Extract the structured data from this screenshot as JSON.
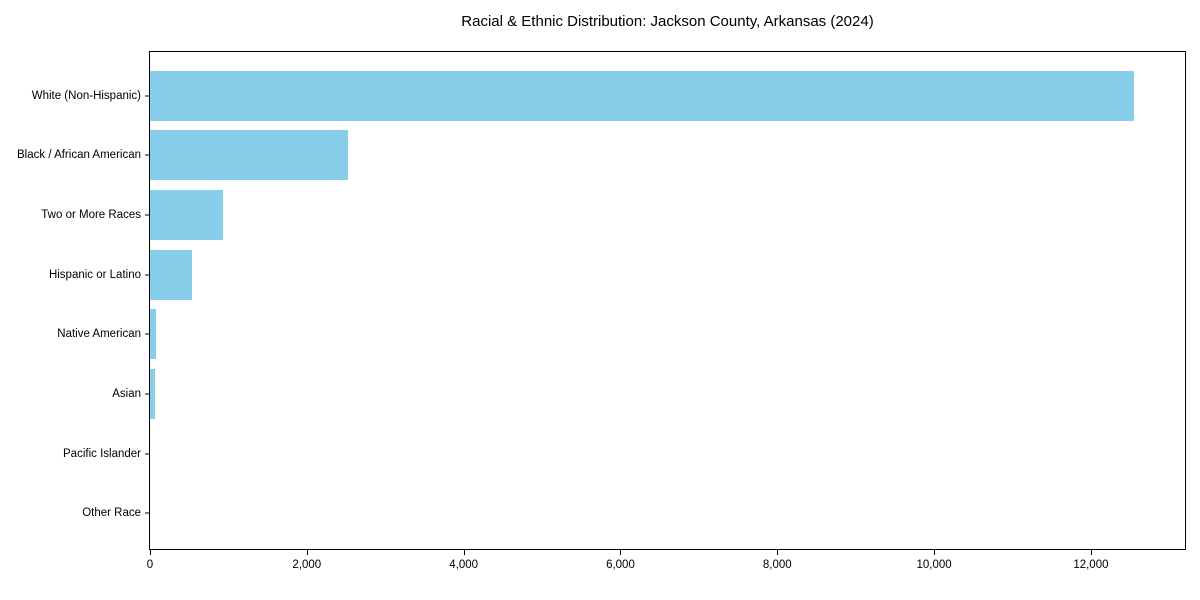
{
  "chart_data": {
    "type": "bar",
    "orientation": "horizontal",
    "title": "Racial & Ethnic Distribution: Jackson County, Arkansas (2024)",
    "categories": [
      "White (Non-Hispanic)",
      "Black / African American",
      "Two or More Races",
      "Hispanic or Latino",
      "Native American",
      "Asian",
      "Pacific Islander",
      "Other Race"
    ],
    "values": [
      12550,
      2530,
      930,
      535,
      80,
      60,
      0,
      0
    ],
    "xlabel": "",
    "ylabel": "",
    "xlim": [
      0,
      13200
    ],
    "x_ticks": [
      0,
      2000,
      4000,
      6000,
      8000,
      10000,
      12000
    ],
    "x_tick_labels": [
      "0",
      "2,000",
      "4,000",
      "6,000",
      "8,000",
      "10,000",
      "12,000"
    ],
    "bar_color": "#87CEEB",
    "axis_color": "#000000",
    "background_color": "#ffffff",
    "grid": false,
    "legend": null
  }
}
